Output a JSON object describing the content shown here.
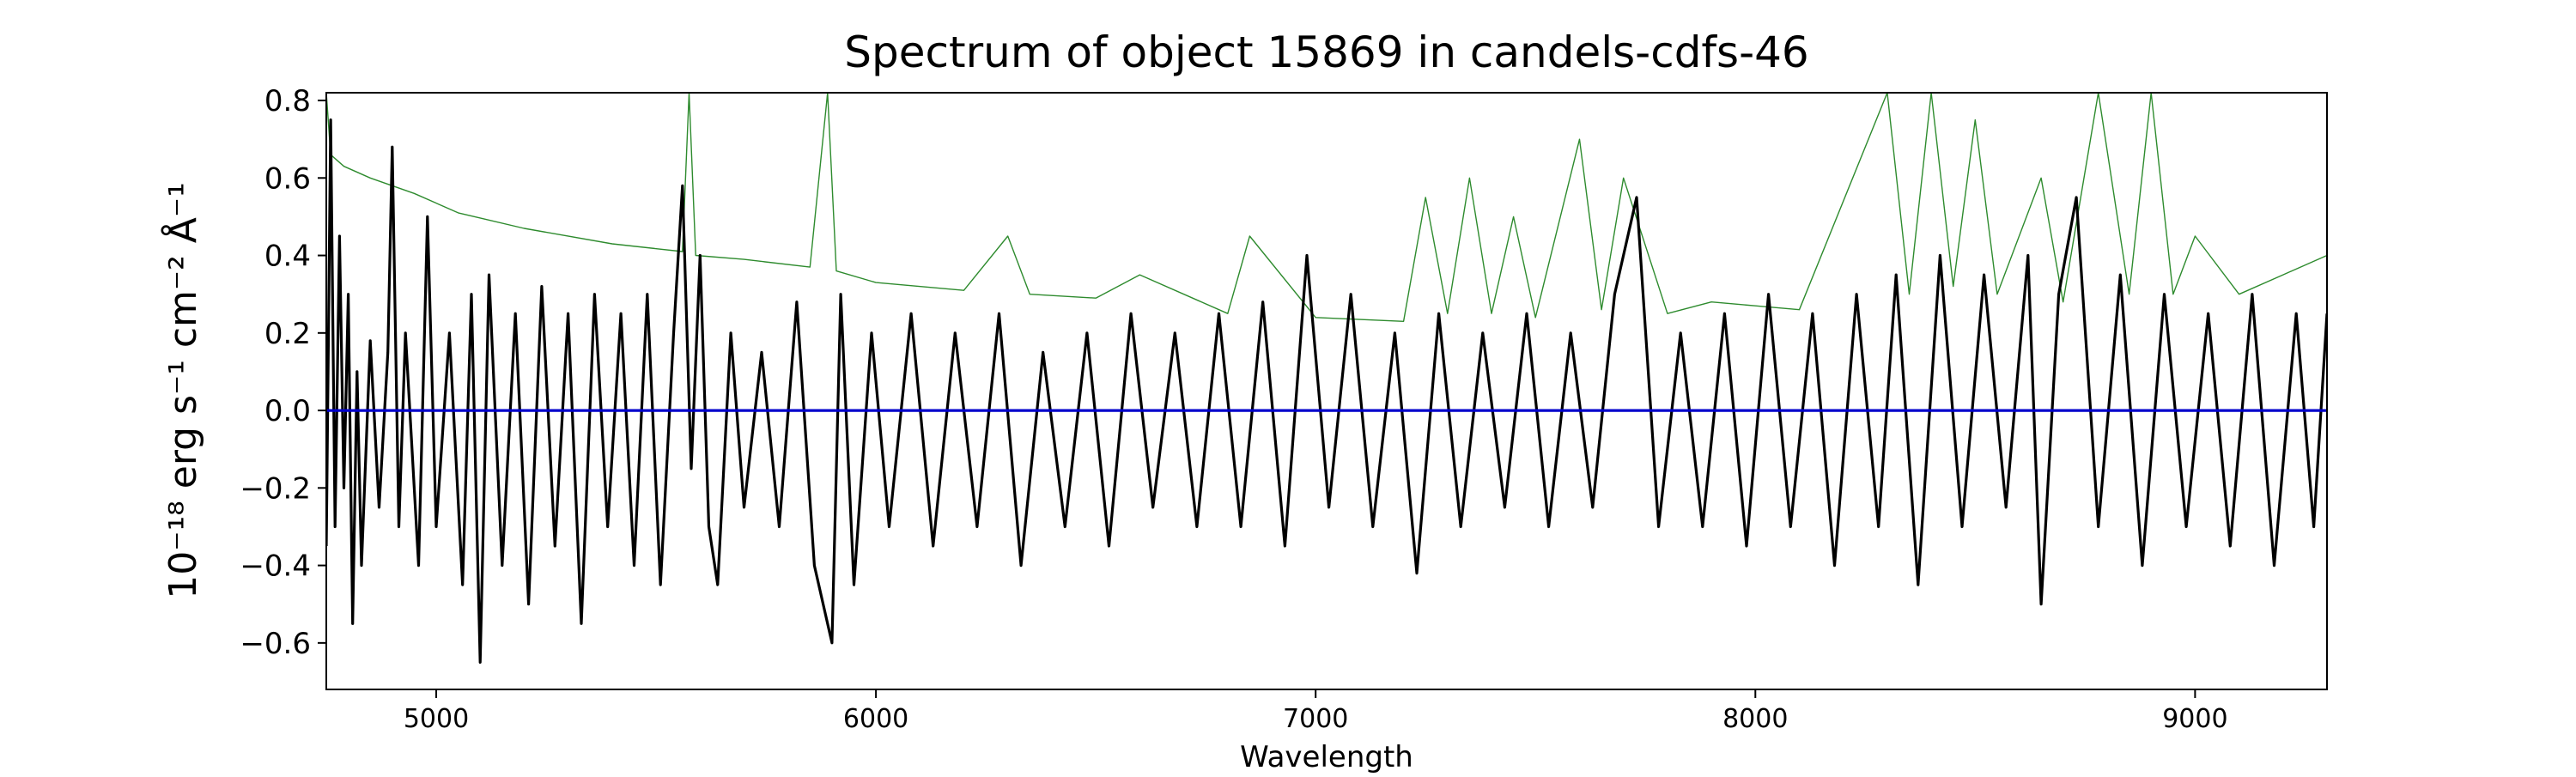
{
  "chart_data": {
    "type": "line",
    "title": "Spectrum of object 15869 in candels-cdfs-46",
    "xlabel": "Wavelength",
    "ylabel": "10⁻¹⁸ erg s⁻¹ cm⁻² Å⁻¹",
    "xlim": [
      4750,
      9300
    ],
    "ylim": [
      -0.72,
      0.82
    ],
    "x_ticks": [
      5000,
      6000,
      7000,
      8000,
      9000
    ],
    "y_ticks": [
      -0.6,
      -0.4,
      -0.2,
      0.0,
      0.2,
      0.4,
      0.6,
      0.8
    ],
    "x_tick_labels": [
      "5000",
      "6000",
      "7000",
      "8000",
      "9000"
    ],
    "y_tick_labels": [
      "−0.6",
      "−0.4",
      "−0.2",
      "0.0",
      "0.2",
      "0.4",
      "0.6",
      "0.8"
    ],
    "grid": false,
    "series": [
      {
        "color": "#000000",
        "style": "noisy flux",
        "points": [
          [
            4750,
            -0.35
          ],
          [
            4760,
            0.75
          ],
          [
            4770,
            -0.3
          ],
          [
            4780,
            0.45
          ],
          [
            4790,
            -0.2
          ],
          [
            4800,
            0.3
          ],
          [
            4810,
            -0.55
          ],
          [
            4820,
            0.1
          ],
          [
            4830,
            -0.4
          ],
          [
            4850,
            0.18
          ],
          [
            4870,
            -0.25
          ],
          [
            4890,
            0.15
          ],
          [
            4900,
            0.68
          ],
          [
            4915,
            -0.3
          ],
          [
            4930,
            0.2
          ],
          [
            4960,
            -0.4
          ],
          [
            4980,
            0.5
          ],
          [
            5000,
            -0.3
          ],
          [
            5030,
            0.2
          ],
          [
            5060,
            -0.45
          ],
          [
            5080,
            0.3
          ],
          [
            5100,
            -0.65
          ],
          [
            5120,
            0.35
          ],
          [
            5150,
            -0.4
          ],
          [
            5180,
            0.25
          ],
          [
            5210,
            -0.5
          ],
          [
            5240,
            0.32
          ],
          [
            5270,
            -0.35
          ],
          [
            5300,
            0.25
          ],
          [
            5330,
            -0.55
          ],
          [
            5360,
            0.3
          ],
          [
            5390,
            -0.3
          ],
          [
            5420,
            0.25
          ],
          [
            5450,
            -0.4
          ],
          [
            5480,
            0.3
          ],
          [
            5510,
            -0.45
          ],
          [
            5540,
            0.2
          ],
          [
            5560,
            0.58
          ],
          [
            5580,
            -0.15
          ],
          [
            5600,
            0.4
          ],
          [
            5620,
            -0.3
          ],
          [
            5640,
            -0.45
          ],
          [
            5670,
            0.2
          ],
          [
            5700,
            -0.25
          ],
          [
            5740,
            0.15
          ],
          [
            5780,
            -0.3
          ],
          [
            5820,
            0.28
          ],
          [
            5860,
            -0.4
          ],
          [
            5900,
            -0.6
          ],
          [
            5920,
            0.3
          ],
          [
            5950,
            -0.45
          ],
          [
            5990,
            0.2
          ],
          [
            6030,
            -0.3
          ],
          [
            6080,
            0.25
          ],
          [
            6130,
            -0.35
          ],
          [
            6180,
            0.2
          ],
          [
            6230,
            -0.3
          ],
          [
            6280,
            0.25
          ],
          [
            6330,
            -0.4
          ],
          [
            6380,
            0.15
          ],
          [
            6430,
            -0.3
          ],
          [
            6480,
            0.2
          ],
          [
            6530,
            -0.35
          ],
          [
            6580,
            0.25
          ],
          [
            6630,
            -0.25
          ],
          [
            6680,
            0.2
          ],
          [
            6730,
            -0.3
          ],
          [
            6780,
            0.25
          ],
          [
            6830,
            -0.3
          ],
          [
            6880,
            0.28
          ],
          [
            6930,
            -0.35
          ],
          [
            6980,
            0.4
          ],
          [
            7030,
            -0.25
          ],
          [
            7080,
            0.3
          ],
          [
            7130,
            -0.3
          ],
          [
            7180,
            0.2
          ],
          [
            7230,
            -0.42
          ],
          [
            7280,
            0.25
          ],
          [
            7330,
            -0.3
          ],
          [
            7380,
            0.2
          ],
          [
            7430,
            -0.25
          ],
          [
            7480,
            0.25
          ],
          [
            7530,
            -0.3
          ],
          [
            7580,
            0.2
          ],
          [
            7630,
            -0.25
          ],
          [
            7680,
            0.3
          ],
          [
            7730,
            0.55
          ],
          [
            7780,
            -0.3
          ],
          [
            7830,
            0.2
          ],
          [
            7880,
            -0.3
          ],
          [
            7930,
            0.25
          ],
          [
            7980,
            -0.35
          ],
          [
            8030,
            0.3
          ],
          [
            8080,
            -0.3
          ],
          [
            8130,
            0.25
          ],
          [
            8180,
            -0.4
          ],
          [
            8230,
            0.3
          ],
          [
            8280,
            -0.3
          ],
          [
            8320,
            0.35
          ],
          [
            8370,
            -0.45
          ],
          [
            8420,
            0.4
          ],
          [
            8470,
            -0.3
          ],
          [
            8520,
            0.35
          ],
          [
            8570,
            -0.25
          ],
          [
            8620,
            0.4
          ],
          [
            8650,
            -0.5
          ],
          [
            8690,
            0.3
          ],
          [
            8730,
            0.55
          ],
          [
            8780,
            -0.3
          ],
          [
            8830,
            0.35
          ],
          [
            8880,
            -0.4
          ],
          [
            8930,
            0.3
          ],
          [
            8980,
            -0.3
          ],
          [
            9030,
            0.25
          ],
          [
            9080,
            -0.35
          ],
          [
            9130,
            0.3
          ],
          [
            9180,
            -0.4
          ],
          [
            9230,
            0.25
          ],
          [
            9270,
            -0.3
          ],
          [
            9300,
            0.25
          ]
        ]
      },
      {
        "color": "#2e8b2e",
        "style": "error / sky",
        "points": [
          [
            4750,
            0.82
          ],
          [
            4760,
            0.66
          ],
          [
            4790,
            0.63
          ],
          [
            4850,
            0.6
          ],
          [
            4950,
            0.56
          ],
          [
            5050,
            0.51
          ],
          [
            5200,
            0.47
          ],
          [
            5400,
            0.43
          ],
          [
            5560,
            0.41
          ],
          [
            5575,
            0.82
          ],
          [
            5590,
            0.4
          ],
          [
            5700,
            0.39
          ],
          [
            5850,
            0.37
          ],
          [
            5890,
            0.82
          ],
          [
            5910,
            0.36
          ],
          [
            6000,
            0.33
          ],
          [
            6200,
            0.31
          ],
          [
            6300,
            0.45
          ],
          [
            6350,
            0.3
          ],
          [
            6500,
            0.29
          ],
          [
            6600,
            0.35
          ],
          [
            6800,
            0.25
          ],
          [
            6850,
            0.45
          ],
          [
            7000,
            0.24
          ],
          [
            7200,
            0.23
          ],
          [
            7250,
            0.55
          ],
          [
            7300,
            0.25
          ],
          [
            7350,
            0.6
          ],
          [
            7400,
            0.25
          ],
          [
            7450,
            0.5
          ],
          [
            7500,
            0.24
          ],
          [
            7600,
            0.7
          ],
          [
            7650,
            0.26
          ],
          [
            7700,
            0.6
          ],
          [
            7800,
            0.25
          ],
          [
            7900,
            0.28
          ],
          [
            8000,
            0.27
          ],
          [
            8100,
            0.26
          ],
          [
            8300,
            0.82
          ],
          [
            8350,
            0.3
          ],
          [
            8400,
            0.82
          ],
          [
            8450,
            0.32
          ],
          [
            8500,
            0.75
          ],
          [
            8550,
            0.3
          ],
          [
            8650,
            0.6
          ],
          [
            8700,
            0.28
          ],
          [
            8780,
            0.82
          ],
          [
            8850,
            0.3
          ],
          [
            8900,
            0.82
          ],
          [
            8950,
            0.3
          ],
          [
            9000,
            0.45
          ],
          [
            9100,
            0.3
          ],
          [
            9200,
            0.35
          ],
          [
            9300,
            0.4
          ]
        ]
      },
      {
        "color": "#0000cc",
        "style": "zero model",
        "points": [
          [
            4750,
            0.0
          ],
          [
            9300,
            0.0
          ]
        ]
      }
    ]
  }
}
